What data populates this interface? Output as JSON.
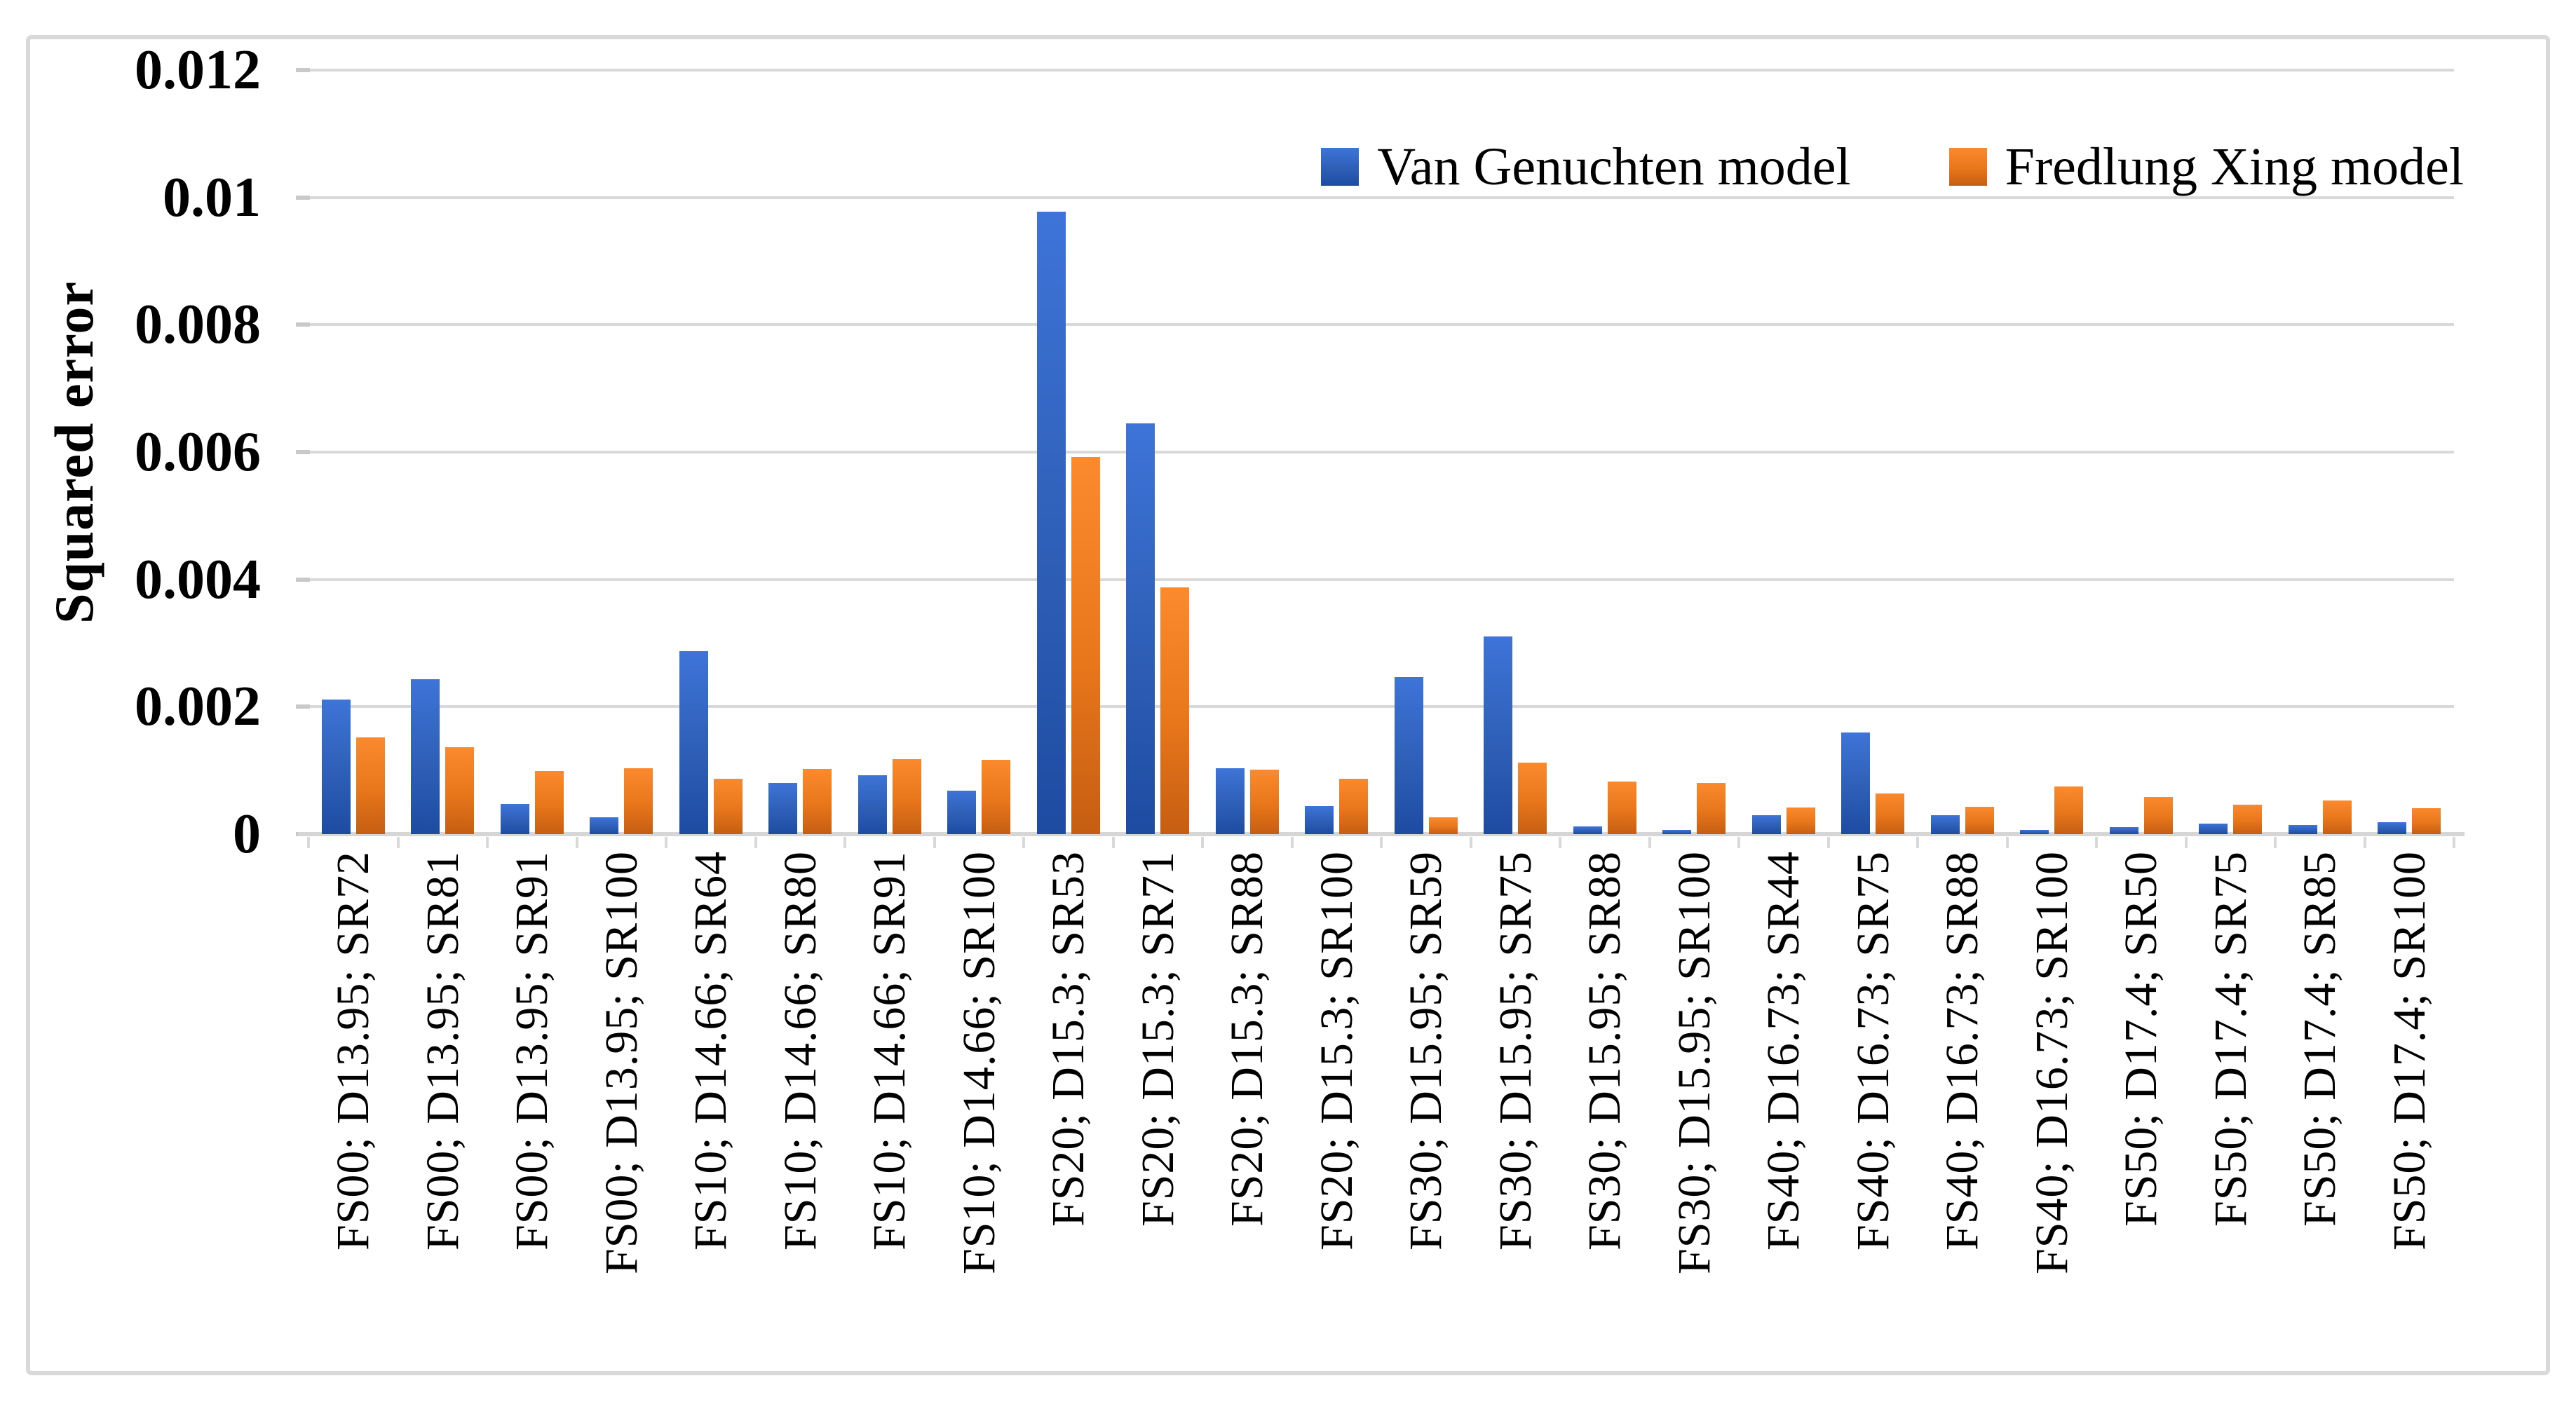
{
  "chart_data": {
    "type": "bar",
    "title": "",
    "xlabel": "",
    "ylabel": "Squared error",
    "ylim": [
      0,
      0.012
    ],
    "grid": true,
    "legend_position": "top-right-inside",
    "yticks": [
      "0",
      "0.002",
      "0.004",
      "0.006",
      "0.008",
      "0.01",
      "0.012"
    ],
    "ytick_values": [
      0,
      0.002,
      0.004,
      0.006,
      0.008,
      0.01,
      0.012
    ],
    "categories": [
      "FS00; D13.95; SR72",
      "FS00; D13.95; SR81",
      "FS00; D13.95; SR91",
      "FS00; D13.95; SR100",
      "FS10; D14.66; SR64",
      "FS10; D14.66; SR80",
      "FS10; D14.66; SR91",
      "FS10; D14.66; SR100",
      "FS20; D15.3; SR53",
      "FS20; D15.3; SR71",
      "FS20; D15.3; SR88",
      "FS20; D15.3; SR100",
      "FS30; D15.95; SR59",
      "FS30; D15.95; SR75",
      "FS30; D15.95; SR88",
      "FS30; D15.95; SR100",
      "FS40; D16.73; SR44",
      "FS40; D16.73; SR75",
      "FS40; D16.73; SR88",
      "FS40; D16.73; SR100",
      "FS50; D17.4; SR50",
      "FS50; D17.4; SR75",
      "FS50; D17.4; SR85",
      "FS50; D17.4; SR100"
    ],
    "series": [
      {
        "name": "Van Genuchten model",
        "color": "#2E5FB7",
        "color_top": "#3E74D8",
        "color_bottom": "#1E4BA2",
        "values": [
          0.00211,
          0.00243,
          0.00047,
          0.00026,
          0.00287,
          0.0008,
          0.00093,
          0.00068,
          0.00978,
          0.00645,
          0.00103,
          0.00044,
          0.00247,
          0.00311,
          0.00012,
          7e-05,
          0.0003,
          0.0016,
          0.0003,
          7e-05,
          0.00011,
          0.00016,
          0.00014,
          0.00019
        ]
      },
      {
        "name": "Fredlung Xing model",
        "color": "#E8761B",
        "color_top": "#FB8A2E",
        "color_bottom": "#C55E12",
        "values": [
          0.00152,
          0.00136,
          0.00099,
          0.00104,
          0.00087,
          0.00102,
          0.00118,
          0.00117,
          0.00592,
          0.00388,
          0.00101,
          0.00087,
          0.00026,
          0.00112,
          0.00083,
          0.0008,
          0.00042,
          0.00064,
          0.00043,
          0.00075,
          0.00058,
          0.00046,
          0.00053,
          0.00041
        ]
      }
    ],
    "axis_colors": {
      "gridline": "#D9D9D9",
      "grid_nub": "#C9C9C9",
      "baseline": "#D6D6D6",
      "frame_border": "#D9D9D9"
    }
  }
}
